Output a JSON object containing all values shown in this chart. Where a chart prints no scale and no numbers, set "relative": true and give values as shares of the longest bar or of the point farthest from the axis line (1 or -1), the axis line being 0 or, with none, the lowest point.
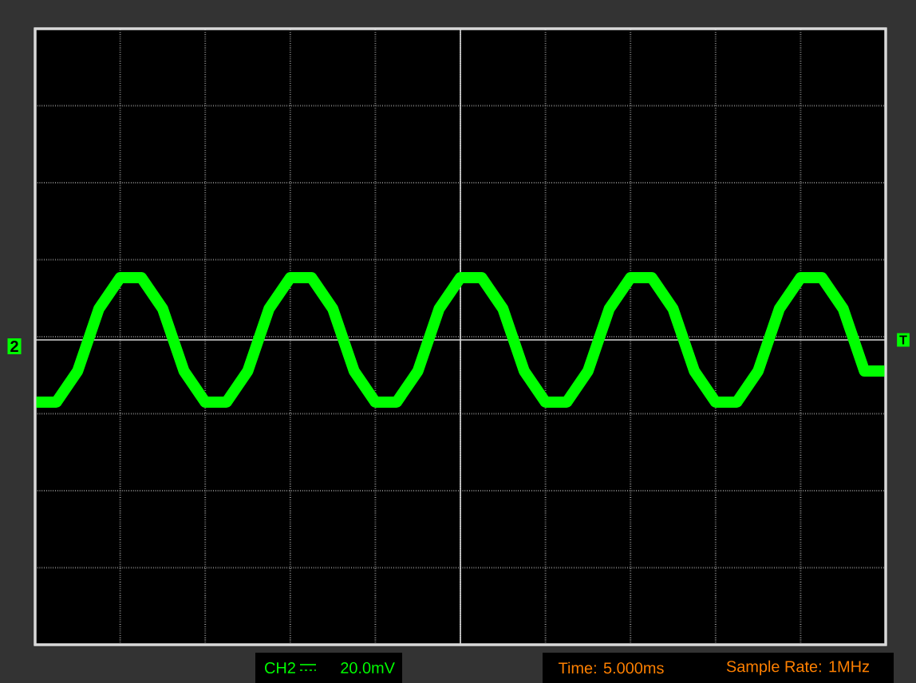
{
  "chart_data": {
    "type": "line",
    "relative": true,
    "grid": true,
    "color": "#00ff00",
    "categories": [
      null,
      null,
      null,
      null,
      null,
      null,
      null,
      null,
      null,
      null,
      null,
      null,
      null,
      null,
      null,
      null,
      null,
      null,
      null,
      null,
      null,
      null,
      null,
      null,
      null,
      null,
      null,
      null,
      null,
      null,
      null,
      null,
      null,
      null,
      null,
      null,
      null,
      null,
      null,
      null,
      null
    ],
    "values": [
      -1,
      -1,
      -0.5,
      0.5,
      1,
      1,
      0.5,
      -0.5,
      -1,
      -1,
      -0.5,
      0.5,
      1,
      1,
      0.5,
      -0.5,
      -1,
      -1,
      -0.5,
      0.5,
      1,
      1,
      0.5,
      -0.5,
      -1,
      -1,
      -0.5,
      0.5,
      1,
      1,
      0.5,
      -0.5,
      -1,
      -1,
      -0.5,
      0.5,
      1,
      1,
      0.5,
      -0.5,
      -0.5
    ],
    "annotations": [
      "2",
      "T",
      "CH2",
      "Time: 5.000ms",
      "Sample Rate: 1MHz",
      "20.0mV"
    ]
  }
}
